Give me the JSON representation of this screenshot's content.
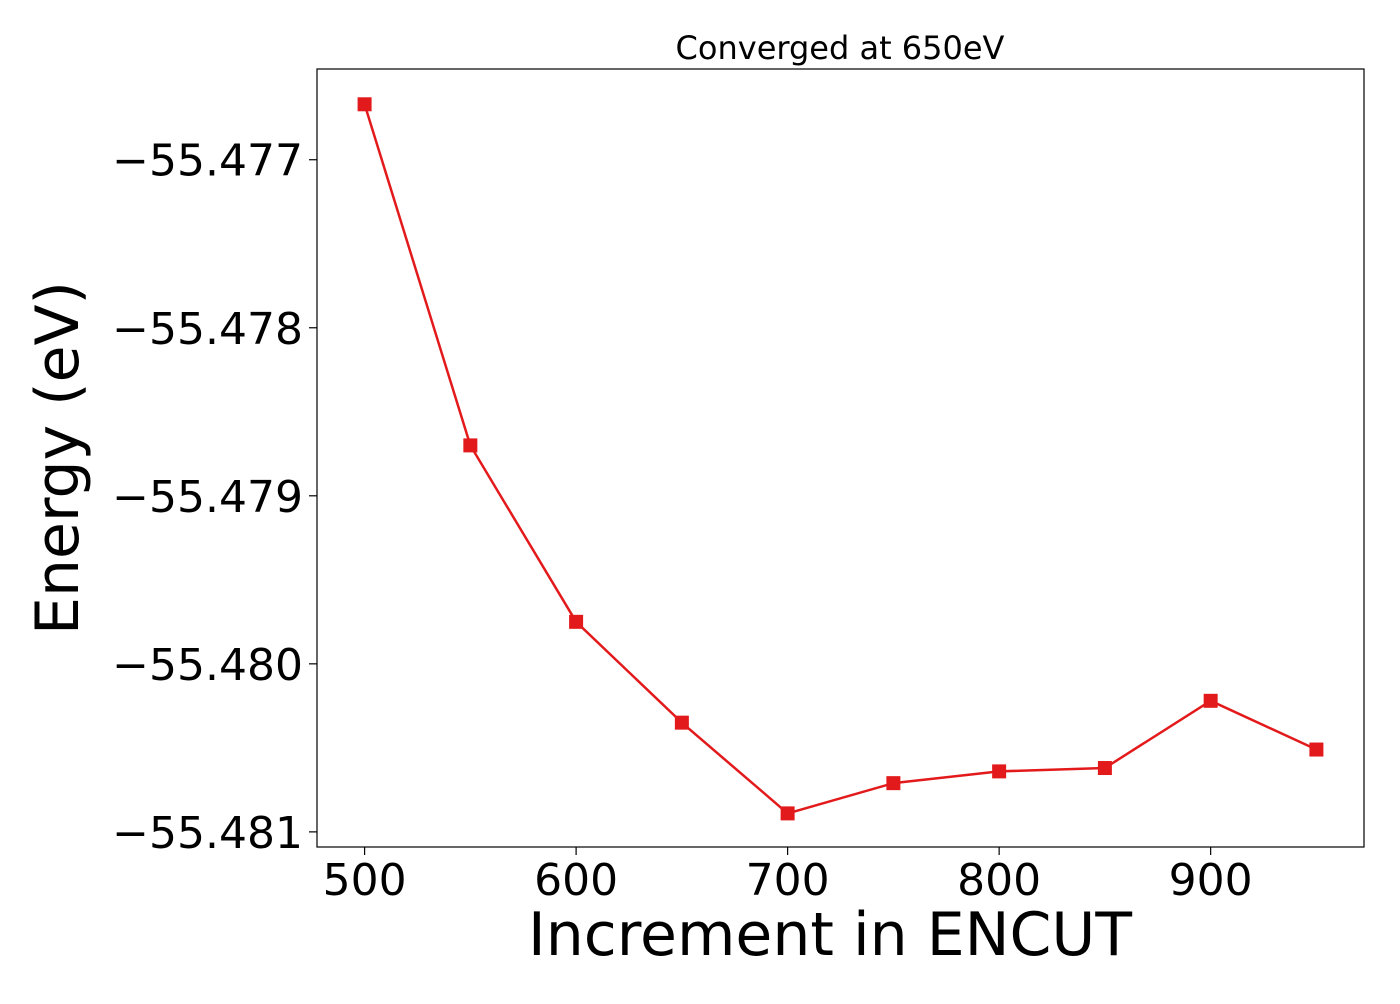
{
  "chart_data": {
    "type": "line",
    "title": "Converged at 650eV",
    "xlabel": "Increment in ENCUT",
    "ylabel": "Energy (eV)",
    "x": [
      500,
      550,
      600,
      650,
      700,
      750,
      800,
      850,
      900,
      950
    ],
    "series": [
      {
        "values": [
          -55.47667,
          -55.4787,
          -55.47975,
          -55.48035,
          -55.48089,
          -55.48071,
          -55.48064,
          -55.48062,
          -55.48022,
          -55.48051
        ]
      }
    ],
    "xlim": [
      477.5,
      972.5
    ],
    "ylim": [
      -55.48109,
      -55.47646
    ],
    "xticks": [
      500,
      600,
      700,
      800,
      900
    ],
    "xtick_labels": [
      "500",
      "600",
      "700",
      "800",
      "900"
    ],
    "yticks": [
      -55.477,
      -55.478,
      -55.479,
      -55.48,
      -55.481
    ],
    "ytick_labels": [
      "−55.477",
      "−55.478",
      "−55.479",
      "−55.480",
      "−55.481"
    ],
    "grid": false,
    "line_color": "#e31a1c",
    "marker": "square"
  }
}
